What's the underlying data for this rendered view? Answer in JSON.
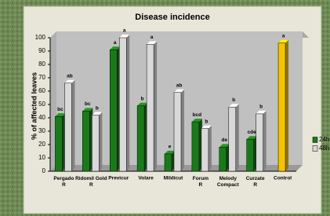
{
  "chart_data": {
    "type": "bar",
    "title": "Disease incidence",
    "y_label": "% of affected leaves",
    "categories": [
      "Pergado R",
      "Ridomil Gold R",
      "Previcur",
      "Volare",
      "Mildicut",
      "Forum R",
      "Melody Compact",
      "Curzate R",
      "Control"
    ],
    "series": [
      {
        "name": "24h",
        "color": "#1a7a1a",
        "colors": [
          "#1a7a1a",
          "#1a7a1a",
          "#1a7a1a",
          "#1a7a1a",
          "#1a7a1a",
          "#1a7a1a",
          "#1a7a1a",
          "#1a7a1a",
          "#f5c400"
        ],
        "values": [
          41,
          45,
          91,
          49,
          13,
          37,
          18,
          24,
          96
        ],
        "letters": [
          "bc",
          "bc",
          "a",
          "b",
          "e",
          "bcd",
          "de",
          "cde",
          "a"
        ]
      },
      {
        "name": "48h",
        "color": "#d9d9d9",
        "values": [
          66,
          42,
          100,
          95,
          59,
          32,
          48,
          43,
          null
        ],
        "letters": [
          "ab",
          "b",
          "a",
          "a",
          "ab",
          "b",
          "b",
          "b",
          null
        ]
      }
    ],
    "ylim": [
      0,
      100
    ],
    "yticks": [
      0,
      10,
      20,
      30,
      40,
      50,
      60,
      70,
      80,
      90,
      100
    ],
    "grid": false,
    "legend": "right"
  }
}
